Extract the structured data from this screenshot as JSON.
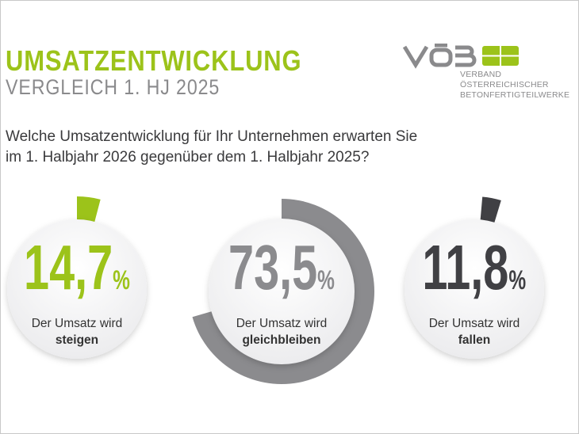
{
  "header": {
    "title": "UMSATZENTWICKLUNG",
    "subtitle": "VERGLEICH 1. HJ 2025"
  },
  "logo": {
    "wordmark": "VÖB",
    "line1": "VERBAND ÖSTERREICHISCHER",
    "line2": "BETONFERTIGTEILWERKE"
  },
  "question": {
    "line1": "Welche Umsatzentwicklung für Ihr Unternehmen erwarten Sie",
    "line2": "im 1. Halbjahr 2026 gegenüber dem 1. Halbjahr 2025?"
  },
  "chart_data": {
    "type": "pie",
    "unit": "%",
    "items": [
      {
        "value": "14,7",
        "number": 14.7,
        "unit": "%",
        "label": "Der Umsatz wird",
        "emphasis": "steigen",
        "color": "#9cc31a"
      },
      {
        "value": "73,5",
        "number": 73.5,
        "unit": "%",
        "label": "Der Umsatz wird",
        "emphasis": "gleichbleiben",
        "color": "#8b8b8e"
      },
      {
        "value": "11,8",
        "number": 11.8,
        "unit": "%",
        "label": "Der Umsatz wird",
        "emphasis": "fallen",
        "color": "#404044"
      }
    ]
  }
}
